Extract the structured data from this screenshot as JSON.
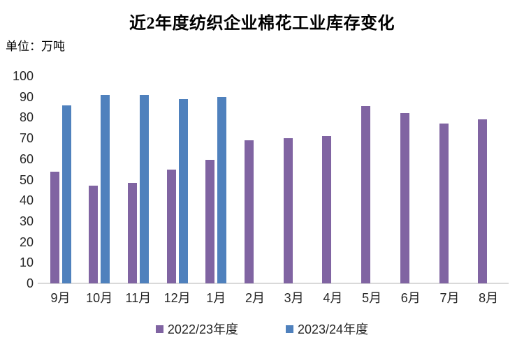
{
  "unit_label": "单位：万吨",
  "chart_data": {
    "type": "bar",
    "title": "近2年度纺织企业棉花工业库存变化",
    "categories": [
      "9月",
      "10月",
      "11月",
      "12月",
      "1月",
      "2月",
      "3月",
      "4月",
      "5月",
      "6月",
      "7月",
      "8月"
    ],
    "series": [
      {
        "name": "2022/23年度",
        "color": "#8064A2",
        "values": [
          54,
          47,
          48.5,
          55,
          59.5,
          69,
          70,
          71,
          85.5,
          82,
          77,
          79
        ]
      },
      {
        "name": "2023/24年度",
        "color": "#4F81BD",
        "values": [
          86,
          91,
          91,
          89,
          90,
          null,
          null,
          null,
          null,
          null,
          null,
          null
        ]
      }
    ],
    "ylabel": "万吨",
    "ylim": [
      0,
      100
    ],
    "ytick_step": 10,
    "yticks": [
      0,
      10,
      20,
      30,
      40,
      50,
      60,
      70,
      80,
      90,
      100
    ],
    "grid": false,
    "legend_position": "bottom",
    "axis_line_color": "#D9D9D9",
    "text_color": "#262626",
    "title_color": "#000000"
  }
}
